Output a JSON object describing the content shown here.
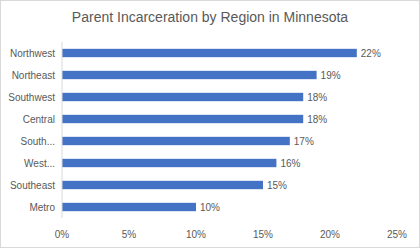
{
  "chart_data": {
    "type": "bar",
    "orientation": "horizontal",
    "title": "Parent Incarceration by Region in Minnesota",
    "categories": [
      "Northwest",
      "Northeast",
      "Southwest",
      "Central",
      "South...",
      "West...",
      "Southeast",
      "Metro"
    ],
    "values": [
      22,
      19,
      18,
      18,
      17,
      16,
      15,
      10
    ],
    "value_labels": [
      "22%",
      "19%",
      "18%",
      "18%",
      "17%",
      "16%",
      "15%",
      "10%"
    ],
    "color": "#4472c4",
    "xlim": [
      0,
      25
    ],
    "xticks": [
      {
        "value": 0,
        "label": "0%"
      },
      {
        "value": 5,
        "label": "5%"
      },
      {
        "value": 10,
        "label": "10%"
      },
      {
        "value": 15,
        "label": "15%"
      },
      {
        "value": 20,
        "label": "20%"
      },
      {
        "value": 25,
        "label": "25%"
      }
    ],
    "grid": false,
    "data_labels": true
  }
}
